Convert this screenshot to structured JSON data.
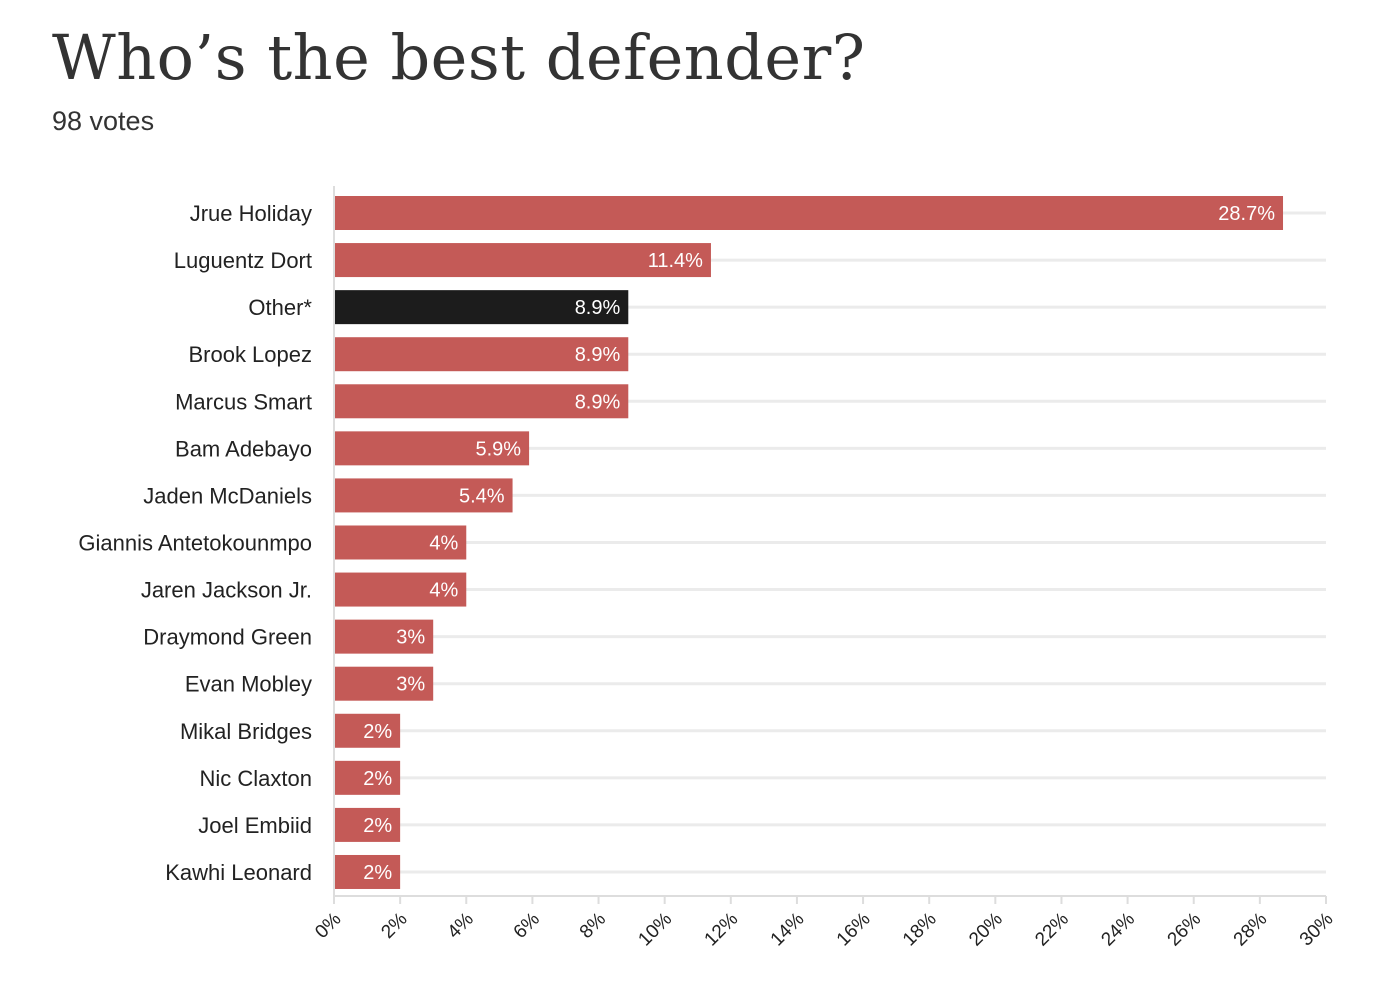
{
  "chart_data": {
    "type": "bar",
    "orientation": "horizontal",
    "title": "Who’s the best defender?",
    "subtitle": "98 votes",
    "categories": [
      "Jrue Holiday",
      "Luguentz Dort",
      "Other*",
      "Brook Lopez",
      "Marcus Smart",
      "Bam Adebayo",
      "Jaden McDaniels",
      "Giannis Antetokounmpo",
      "Jaren Jackson Jr.",
      "Draymond Green",
      "Evan Mobley",
      "Mikal Bridges",
      "Nic Claxton",
      "Joel Embiid",
      "Kawhi Leonard"
    ],
    "values": [
      28.7,
      11.4,
      8.9,
      8.9,
      8.9,
      5.9,
      5.4,
      4,
      4,
      3,
      3,
      2,
      2,
      2,
      2
    ],
    "value_labels": [
      "28.7%",
      "11.4%",
      "8.9%",
      "8.9%",
      "8.9%",
      "5.9%",
      "5.4%",
      "4%",
      "4%",
      "3%",
      "3%",
      "2%",
      "2%",
      "2%",
      "2%"
    ],
    "highlight_index": 2,
    "xlim": [
      0,
      30
    ],
    "xticks": [
      0,
      2,
      4,
      6,
      8,
      10,
      12,
      14,
      16,
      18,
      20,
      22,
      24,
      26,
      28,
      30
    ],
    "xtick_labels": [
      "0%",
      "2%",
      "4%",
      "6%",
      "8%",
      "10%",
      "12%",
      "14%",
      "16%",
      "18%",
      "20%",
      "22%",
      "24%",
      "26%",
      "28%",
      "30%"
    ],
    "xlabel": "",
    "ylabel": "",
    "grid": true,
    "colors": {
      "bar": "#c45a57",
      "highlight": "#1c1c1c",
      "grid": "#ebebeb",
      "axis": "#dddddd",
      "bar_label": "#ffffff"
    }
  }
}
